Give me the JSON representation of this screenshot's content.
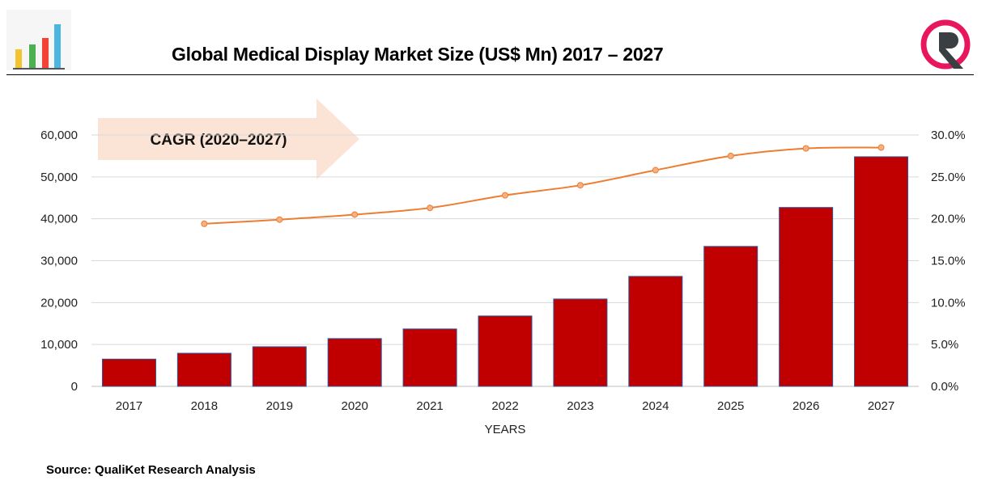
{
  "title": "Global Medical Display Market Size (US$ Mn) 2017 – 2027",
  "source": "Source: QualiKet Research Analysis",
  "cagr_label": "CAGR (2020–2027)",
  "colors": {
    "bar": "#C00000",
    "bar_outline": "#2F5597",
    "line": "#ED7D31",
    "arrow": "#FBE3D6"
  },
  "chart_data": {
    "type": "bar+line",
    "xlabel": "YEARS",
    "categories": [
      "2017",
      "2018",
      "2019",
      "2020",
      "2021",
      "2022",
      "2023",
      "2024",
      "2025",
      "2026",
      "2027"
    ],
    "series": [
      {
        "type": "bar",
        "axis": "left",
        "values": [
          6500,
          7900,
          9450,
          11400,
          13700,
          16800,
          20850,
          26250,
          33400,
          42700,
          54800
        ]
      },
      {
        "type": "line",
        "axis": "right",
        "values": [
          null,
          19.4,
          19.9,
          20.5,
          21.3,
          22.8,
          24.0,
          25.8,
          27.5,
          28.4,
          28.5
        ]
      }
    ],
    "ylim_left": [
      0,
      60000
    ],
    "yticks_left": [
      "0",
      "10,000",
      "20,000",
      "30,000",
      "40,000",
      "50,000",
      "60,000"
    ],
    "ylim_right": [
      0,
      30
    ],
    "yticks_right": [
      "0.0%",
      "5.0%",
      "10.0%",
      "15.0%",
      "20.0%",
      "25.0%",
      "30.0%"
    ],
    "grid": true
  }
}
